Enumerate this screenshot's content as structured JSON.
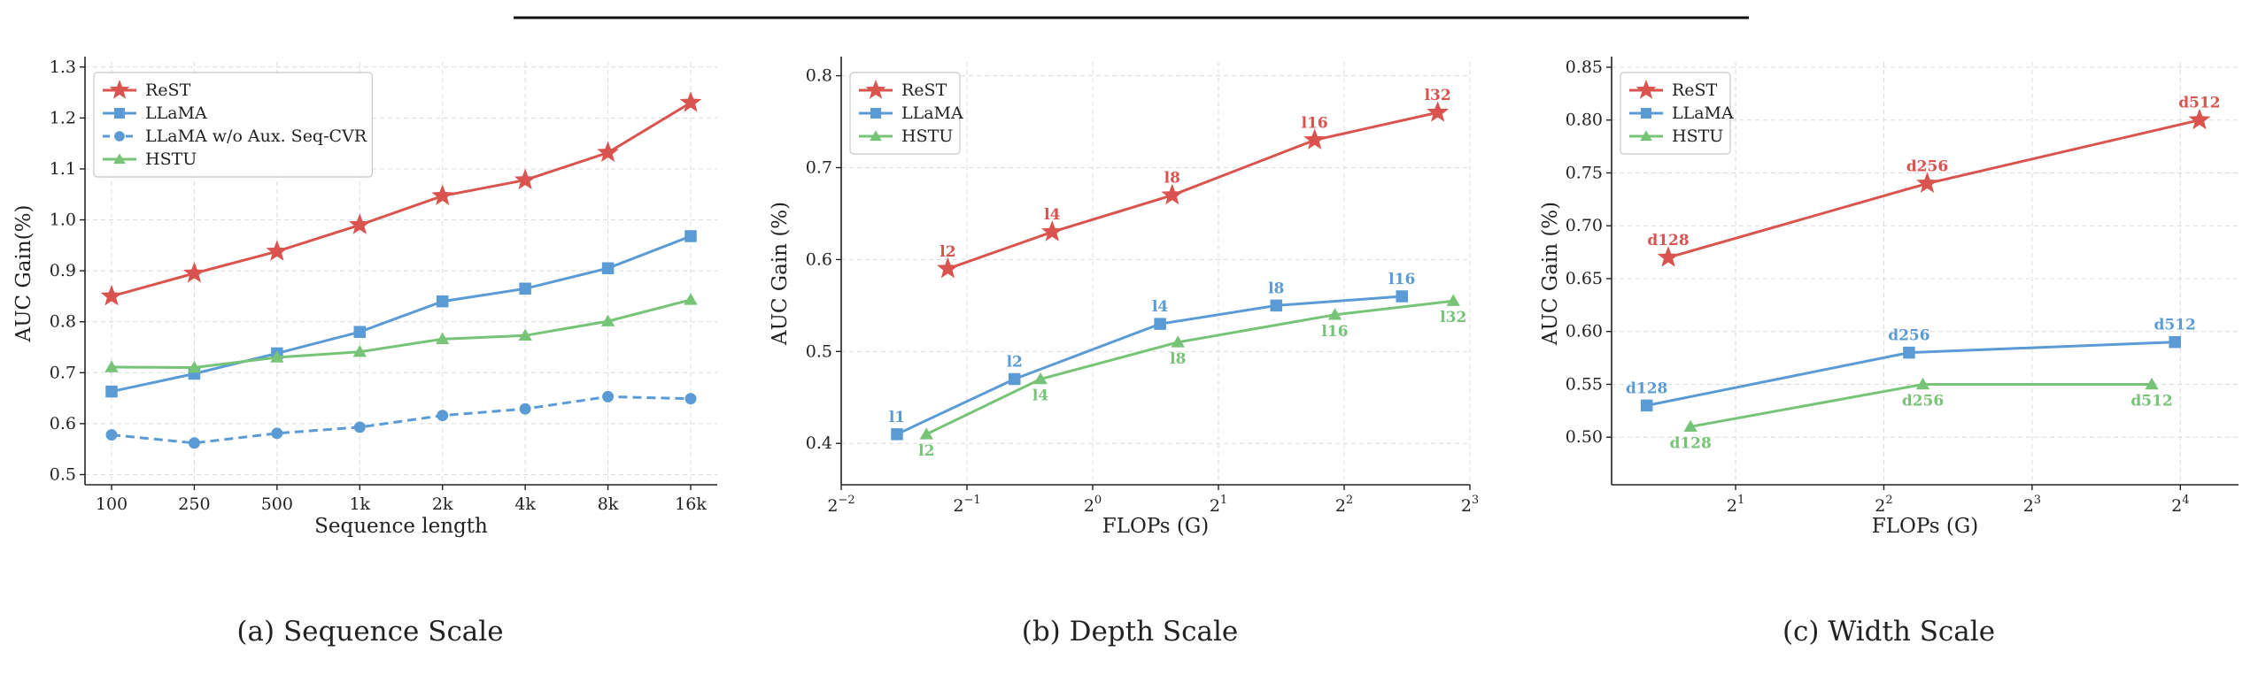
{
  "chart_data": [
    {
      "type": "line",
      "caption": "(a) Sequence Scale",
      "xlabel": "Sequence length",
      "ylabel": "AUC Gain(%)",
      "x_scale": "categorical",
      "categories": [
        "100",
        "250",
        "500",
        "1k",
        "2k",
        "4k",
        "8k",
        "16k"
      ],
      "ylim": [
        0.48,
        1.31
      ],
      "yticks": [
        "0.5",
        "0.6",
        "0.7",
        "0.8",
        "0.9",
        "1.0",
        "1.1",
        "1.2",
        "1.3"
      ],
      "grid": true,
      "legend": "top-left",
      "series": [
        {
          "name": "ReST",
          "color": "#d9534f",
          "marker": "star",
          "dash": false,
          "values": [
            0.85,
            0.895,
            0.938,
            0.99,
            1.047,
            1.078,
            1.132,
            1.23
          ]
        },
        {
          "name": "LLaMA",
          "color": "#5b9bd5",
          "marker": "square",
          "dash": false,
          "values": [
            0.663,
            0.698,
            0.738,
            0.78,
            0.84,
            0.865,
            0.905,
            0.968
          ]
        },
        {
          "name": "LLaMA w/o Aux. Seq-CVR",
          "color": "#5b9bd5",
          "marker": "circle",
          "dash": true,
          "values": [
            0.578,
            0.562,
            0.581,
            0.593,
            0.616,
            0.629,
            0.653,
            0.649
          ]
        },
        {
          "name": "HSTU",
          "color": "#77c377",
          "marker": "triangle",
          "dash": false,
          "values": [
            0.711,
            0.71,
            0.73,
            0.741,
            0.766,
            0.773,
            0.801,
            0.843
          ]
        }
      ]
    },
    {
      "type": "line",
      "caption": "(b) Depth Scale",
      "xlabel": "FLOPs (G)",
      "ylabel": "AUC Gain (%)",
      "x_scale": "log2",
      "xlim": [
        0.25,
        8
      ],
      "xticks": [
        {
          "value": 0.25,
          "base": "2",
          "exp": "−2"
        },
        {
          "value": 0.5,
          "base": "2",
          "exp": "−1"
        },
        {
          "value": 1,
          "base": "2",
          "exp": "0"
        },
        {
          "value": 2,
          "base": "2",
          "exp": "1"
        },
        {
          "value": 4,
          "base": "2",
          "exp": "2"
        },
        {
          "value": 8,
          "base": "2",
          "exp": "3"
        }
      ],
      "ylim": [
        0.355,
        0.815
      ],
      "yticks": [
        "0.4",
        "0.5",
        "0.6",
        "0.7",
        "0.8"
      ],
      "grid": true,
      "legend": "top-left",
      "series": [
        {
          "name": "ReST",
          "color": "#d9534f",
          "marker": "star",
          "label_pos": "above",
          "x": [
            0.45,
            0.8,
            1.55,
            3.4,
            6.7
          ],
          "y": [
            0.59,
            0.63,
            0.67,
            0.73,
            0.76
          ],
          "labels": [
            "l2",
            "l4",
            "l8",
            "l16",
            "l32"
          ]
        },
        {
          "name": "LLaMA",
          "color": "#5b9bd5",
          "marker": "square",
          "label_pos": "above",
          "x": [
            0.34,
            0.65,
            1.45,
            2.75,
            5.5
          ],
          "y": [
            0.41,
            0.47,
            0.53,
            0.55,
            0.56
          ],
          "labels": [
            "l1",
            "l2",
            "l4",
            "l8",
            "l16"
          ]
        },
        {
          "name": "HSTU",
          "color": "#77c377",
          "marker": "triangle",
          "label_pos": "below",
          "x": [
            0.4,
            0.75,
            1.6,
            3.8,
            7.3
          ],
          "y": [
            0.41,
            0.47,
            0.51,
            0.54,
            0.555
          ],
          "labels": [
            "l2",
            "l4",
            "l8",
            "l16",
            "l32"
          ]
        }
      ]
    },
    {
      "type": "line",
      "caption": "(c) Width Scale",
      "xlabel": "FLOPs (G)",
      "ylabel": "AUC Gain (%)",
      "x_scale": "log2",
      "xlim": [
        1.12,
        21
      ],
      "xticks": [
        {
          "value": 2,
          "base": "2",
          "exp": "1"
        },
        {
          "value": 4,
          "base": "2",
          "exp": "2"
        },
        {
          "value": 8,
          "base": "2",
          "exp": "3"
        },
        {
          "value": 16,
          "base": "2",
          "exp": "4"
        }
      ],
      "ylim": [
        0.455,
        0.855
      ],
      "yticks": [
        "0.50",
        "0.55",
        "0.60",
        "0.65",
        "0.70",
        "0.75",
        "0.80",
        "0.85"
      ],
      "grid": true,
      "legend": "top-left",
      "series": [
        {
          "name": "ReST",
          "color": "#d9534f",
          "marker": "star",
          "label_pos": "above",
          "x": [
            1.46,
            4.9,
            17.5
          ],
          "y": [
            0.67,
            0.74,
            0.8
          ],
          "labels": [
            "d128",
            "d256",
            "d512"
          ]
        },
        {
          "name": "LLaMA",
          "color": "#5b9bd5",
          "marker": "square",
          "label_pos": "above",
          "x": [
            1.32,
            4.5,
            15.6
          ],
          "y": [
            0.53,
            0.58,
            0.59
          ],
          "labels": [
            "d128",
            "d256",
            "d512"
          ]
        },
        {
          "name": "HSTU",
          "color": "#77c377",
          "marker": "triangle",
          "label_pos": "below",
          "x": [
            1.62,
            4.8,
            14.0
          ],
          "y": [
            0.51,
            0.55,
            0.55
          ],
          "labels": [
            "d128",
            "d256",
            "d512"
          ]
        }
      ]
    }
  ]
}
